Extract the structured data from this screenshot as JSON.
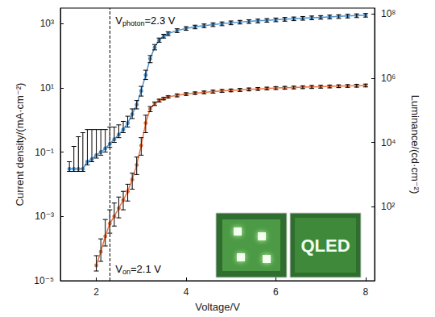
{
  "chart_data": {
    "type": "line",
    "log": "y",
    "grid": false,
    "x_label": "Voltage/V",
    "y_label": "Current density/(mA·cm⁻²)",
    "y2_label": "Luminance/(cd·cm⁻²)",
    "xlim": [
      1.2,
      8.2
    ],
    "xticks": [
      2,
      4,
      6,
      8
    ],
    "ylim": [
      1e-05,
      3000
    ],
    "yticks": [
      {
        "value": 1e-05,
        "label": "10⁻⁵"
      },
      {
        "value": 0.001,
        "label": "10⁻³"
      },
      {
        "value": 0.1,
        "label": "10⁻¹"
      },
      {
        "value": 10,
        "label": "10¹"
      },
      {
        "value": 1000,
        "label": "10³"
      }
    ],
    "y2lim": [
      0.5,
      150000000
    ],
    "y2ticks": [
      {
        "value": 100,
        "label": "10²"
      },
      {
        "value": 10000,
        "label": "10⁴"
      },
      {
        "value": 1000000,
        "label": "10⁶"
      },
      {
        "value": 100000000,
        "label": "10⁸"
      }
    ],
    "reference_line": {
      "x": 2.3,
      "line_style": "dashed"
    },
    "annotations": [
      {
        "text": "V",
        "sub": "photon",
        "tail": "=2.3 V"
      },
      {
        "text": "V",
        "sub": "on",
        "tail": "=2.1 V"
      }
    ],
    "inset_text": "QLED",
    "series": [
      {
        "color": "#4f93cc",
        "marker": "circle",
        "line_style": "solid",
        "axis": "y",
        "x": [
          1.4,
          1.5,
          1.6,
          1.7,
          1.8,
          1.9,
          2.0,
          2.1,
          2.2,
          2.3,
          2.4,
          2.5,
          2.6,
          2.7,
          2.8,
          2.9,
          3.0,
          3.1,
          3.2,
          3.3,
          3.4,
          3.5,
          3.6,
          3.8,
          4.0,
          4.2,
          4.4,
          4.6,
          4.8,
          5.0,
          5.2,
          5.4,
          5.6,
          5.8,
          6.0,
          6.2,
          6.4,
          6.6,
          6.8,
          7.0,
          7.2,
          7.4,
          7.6,
          7.8,
          8.0
        ],
        "values": [
          0.03,
          0.03,
          0.03,
          0.03,
          0.05,
          0.06,
          0.08,
          0.1,
          0.13,
          0.18,
          0.25,
          0.35,
          0.5,
          0.8,
          1.5,
          3,
          8,
          25,
          80,
          180,
          300,
          400,
          480,
          600,
          700,
          780,
          850,
          920,
          980,
          1050,
          1100,
          1150,
          1200,
          1250,
          1300,
          1350,
          1400,
          1450,
          1500,
          1550,
          1600,
          1650,
          1700,
          1750,
          1800
        ],
        "err_low": [
          0.025,
          0.025,
          0.025,
          0.025,
          0.04,
          0.05,
          0.065,
          0.08,
          0.1,
          0.14,
          0.2,
          0.28,
          0.4,
          0.6,
          1.1,
          2.2,
          5.5,
          18,
          60,
          150,
          260,
          350,
          420,
          520,
          610,
          680,
          740,
          800,
          850,
          910,
          960,
          1000,
          1040,
          1090,
          1130,
          1170,
          1220,
          1260,
          1300,
          1350,
          1390,
          1430,
          1480,
          1520,
          1570
        ],
        "err_high": [
          0.05,
          0.15,
          0.3,
          0.4,
          0.5,
          0.5,
          0.5,
          0.5,
          0.5,
          0.6,
          0.6,
          0.7,
          0.9,
          1.3,
          2.2,
          4,
          11,
          35,
          100,
          220,
          350,
          460,
          550,
          680,
          790,
          880,
          960,
          1040,
          1110,
          1190,
          1240,
          1300,
          1360,
          1410,
          1470,
          1530,
          1580,
          1640,
          1700,
          1750,
          1810,
          1860,
          1920,
          1980,
          2040
        ]
      },
      {
        "color": "#ec7442",
        "marker": "circle",
        "line_style": "solid",
        "axis": "y2",
        "x": [
          2.0,
          2.1,
          2.2,
          2.3,
          2.4,
          2.5,
          2.6,
          2.7,
          2.8,
          2.9,
          3.0,
          3.1,
          3.2,
          3.3,
          3.4,
          3.5,
          3.6,
          3.8,
          4.0,
          4.2,
          4.4,
          4.6,
          4.8,
          5.0,
          5.2,
          5.4,
          5.6,
          5.8,
          6.0,
          6.2,
          6.4,
          6.6,
          6.8,
          7.0,
          7.2,
          7.4,
          7.6,
          7.8,
          8.0
        ],
        "values": [
          1.5,
          4,
          12,
          30,
          50,
          90,
          160,
          300,
          700,
          2000,
          8000,
          40000,
          110000,
          160000,
          200000,
          230000,
          260000,
          290000,
          320000,
          340000,
          360000,
          380000,
          400000,
          415000,
          430000,
          445000,
          460000,
          475000,
          490000,
          500000,
          510000,
          520000,
          530000,
          540000,
          550000,
          560000,
          570000,
          580000,
          590000
        ],
        "err_low": [
          1,
          2,
          6,
          15,
          25,
          45,
          80,
          150,
          350,
          1000,
          4000,
          20000,
          90000,
          140000,
          180000,
          210000,
          240000,
          260000,
          290000,
          310000,
          325000,
          340000,
          360000,
          375000,
          385000,
          400000,
          415000,
          430000,
          440000,
          450000,
          460000,
          470000,
          475000,
          485000,
          495000,
          505000,
          515000,
          520000,
          530000
        ],
        "err_high": [
          3,
          10,
          40,
          80,
          130,
          200,
          300,
          500,
          1100,
          3500,
          14000,
          70000,
          130000,
          180000,
          220000,
          250000,
          280000,
          320000,
          350000,
          370000,
          395000,
          420000,
          440000,
          455000,
          475000,
          490000,
          505000,
          520000,
          540000,
          550000,
          560000,
          570000,
          585000,
          595000,
          605000,
          615000,
          625000,
          640000,
          650000
        ]
      }
    ]
  }
}
